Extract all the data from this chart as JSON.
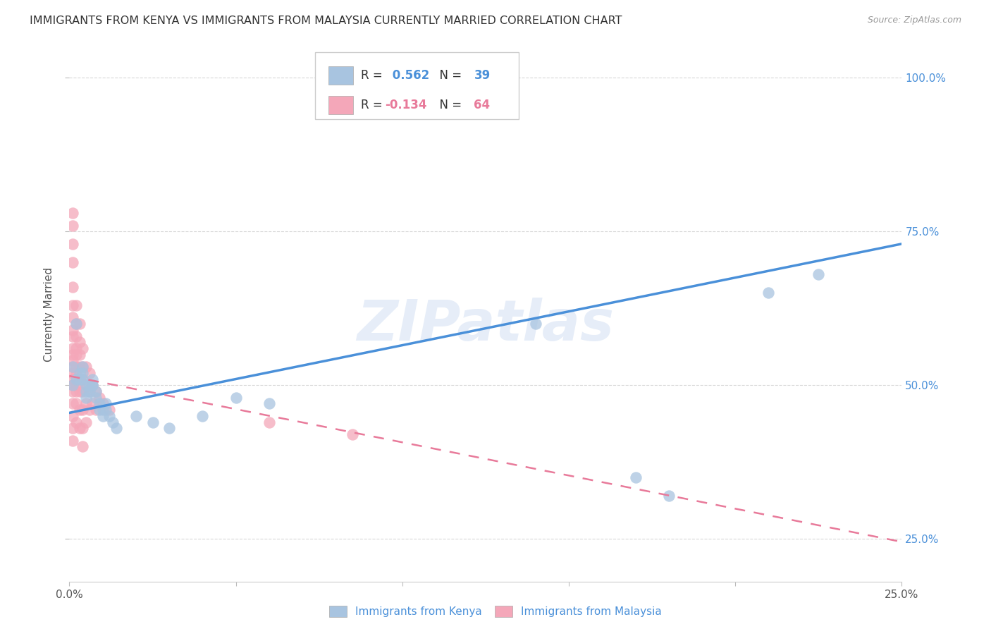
{
  "title": "IMMIGRANTS FROM KENYA VS IMMIGRANTS FROM MALAYSIA CURRENTLY MARRIED CORRELATION CHART",
  "source": "Source: ZipAtlas.com",
  "ylabel": "Currently Married",
  "kenya_R": 0.562,
  "kenya_N": 39,
  "malaysia_R": -0.134,
  "malaysia_N": 64,
  "kenya_color": "#a8c4e0",
  "malaysia_color": "#f4a7b9",
  "kenya_line_color": "#4a90d9",
  "malaysia_line_color": "#e87a9a",
  "watermark": "ZIPatlas",
  "kenya_scatter": [
    [
      0.001,
      0.53
    ],
    [
      0.001,
      0.5
    ],
    [
      0.002,
      0.6
    ],
    [
      0.002,
      0.51
    ],
    [
      0.003,
      0.52
    ],
    [
      0.003,
      0.51
    ],
    [
      0.004,
      0.53
    ],
    [
      0.004,
      0.52
    ],
    [
      0.004,
      0.51
    ],
    [
      0.005,
      0.5
    ],
    [
      0.005,
      0.49
    ],
    [
      0.005,
      0.48
    ],
    [
      0.006,
      0.5
    ],
    [
      0.006,
      0.49
    ],
    [
      0.007,
      0.51
    ],
    [
      0.007,
      0.5
    ],
    [
      0.007,
      0.5
    ],
    [
      0.008,
      0.49
    ],
    [
      0.008,
      0.48
    ],
    [
      0.009,
      0.47
    ],
    [
      0.009,
      0.46
    ],
    [
      0.01,
      0.46
    ],
    [
      0.01,
      0.45
    ],
    [
      0.011,
      0.47
    ],
    [
      0.011,
      0.46
    ],
    [
      0.012,
      0.45
    ],
    [
      0.013,
      0.44
    ],
    [
      0.014,
      0.43
    ],
    [
      0.02,
      0.45
    ],
    [
      0.025,
      0.44
    ],
    [
      0.03,
      0.43
    ],
    [
      0.04,
      0.45
    ],
    [
      0.05,
      0.48
    ],
    [
      0.06,
      0.47
    ],
    [
      0.14,
      0.6
    ],
    [
      0.17,
      0.35
    ],
    [
      0.18,
      0.32
    ],
    [
      0.21,
      0.65
    ],
    [
      0.225,
      0.68
    ]
  ],
  "malaysia_scatter": [
    [
      0.001,
      0.78
    ],
    [
      0.001,
      0.76
    ],
    [
      0.001,
      0.73
    ],
    [
      0.001,
      0.7
    ],
    [
      0.001,
      0.66
    ],
    [
      0.001,
      0.63
    ],
    [
      0.001,
      0.61
    ],
    [
      0.001,
      0.59
    ],
    [
      0.001,
      0.58
    ],
    [
      0.001,
      0.56
    ],
    [
      0.001,
      0.55
    ],
    [
      0.001,
      0.54
    ],
    [
      0.001,
      0.53
    ],
    [
      0.001,
      0.52
    ],
    [
      0.001,
      0.51
    ],
    [
      0.001,
      0.5
    ],
    [
      0.001,
      0.49
    ],
    [
      0.001,
      0.47
    ],
    [
      0.001,
      0.45
    ],
    [
      0.001,
      0.43
    ],
    [
      0.001,
      0.41
    ],
    [
      0.002,
      0.63
    ],
    [
      0.002,
      0.6
    ],
    [
      0.002,
      0.58
    ],
    [
      0.002,
      0.56
    ],
    [
      0.002,
      0.55
    ],
    [
      0.002,
      0.53
    ],
    [
      0.002,
      0.52
    ],
    [
      0.002,
      0.51
    ],
    [
      0.002,
      0.5
    ],
    [
      0.002,
      0.49
    ],
    [
      0.002,
      0.47
    ],
    [
      0.002,
      0.44
    ],
    [
      0.003,
      0.6
    ],
    [
      0.003,
      0.57
    ],
    [
      0.003,
      0.55
    ],
    [
      0.003,
      0.53
    ],
    [
      0.003,
      0.51
    ],
    [
      0.003,
      0.49
    ],
    [
      0.003,
      0.46
    ],
    [
      0.003,
      0.43
    ],
    [
      0.004,
      0.56
    ],
    [
      0.004,
      0.53
    ],
    [
      0.004,
      0.51
    ],
    [
      0.004,
      0.49
    ],
    [
      0.004,
      0.46
    ],
    [
      0.004,
      0.43
    ],
    [
      0.004,
      0.4
    ],
    [
      0.005,
      0.53
    ],
    [
      0.005,
      0.5
    ],
    [
      0.005,
      0.47
    ],
    [
      0.005,
      0.44
    ],
    [
      0.006,
      0.52
    ],
    [
      0.006,
      0.49
    ],
    [
      0.006,
      0.46
    ],
    [
      0.007,
      0.5
    ],
    [
      0.007,
      0.47
    ],
    [
      0.008,
      0.49
    ],
    [
      0.008,
      0.46
    ],
    [
      0.009,
      0.48
    ],
    [
      0.01,
      0.47
    ],
    [
      0.012,
      0.46
    ],
    [
      0.06,
      0.44
    ],
    [
      0.085,
      0.42
    ]
  ],
  "xlim": [
    0.0,
    0.25
  ],
  "ylim": [
    0.18,
    1.05
  ],
  "y_ticks": [
    0.25,
    0.5,
    0.75,
    1.0
  ],
  "x_ticks": [
    0.0,
    0.05,
    0.1,
    0.15,
    0.2,
    0.25
  ],
  "grid_color": "#d8d8d8",
  "background_color": "#ffffff",
  "title_fontsize": 11.5,
  "axis_label_fontsize": 10
}
